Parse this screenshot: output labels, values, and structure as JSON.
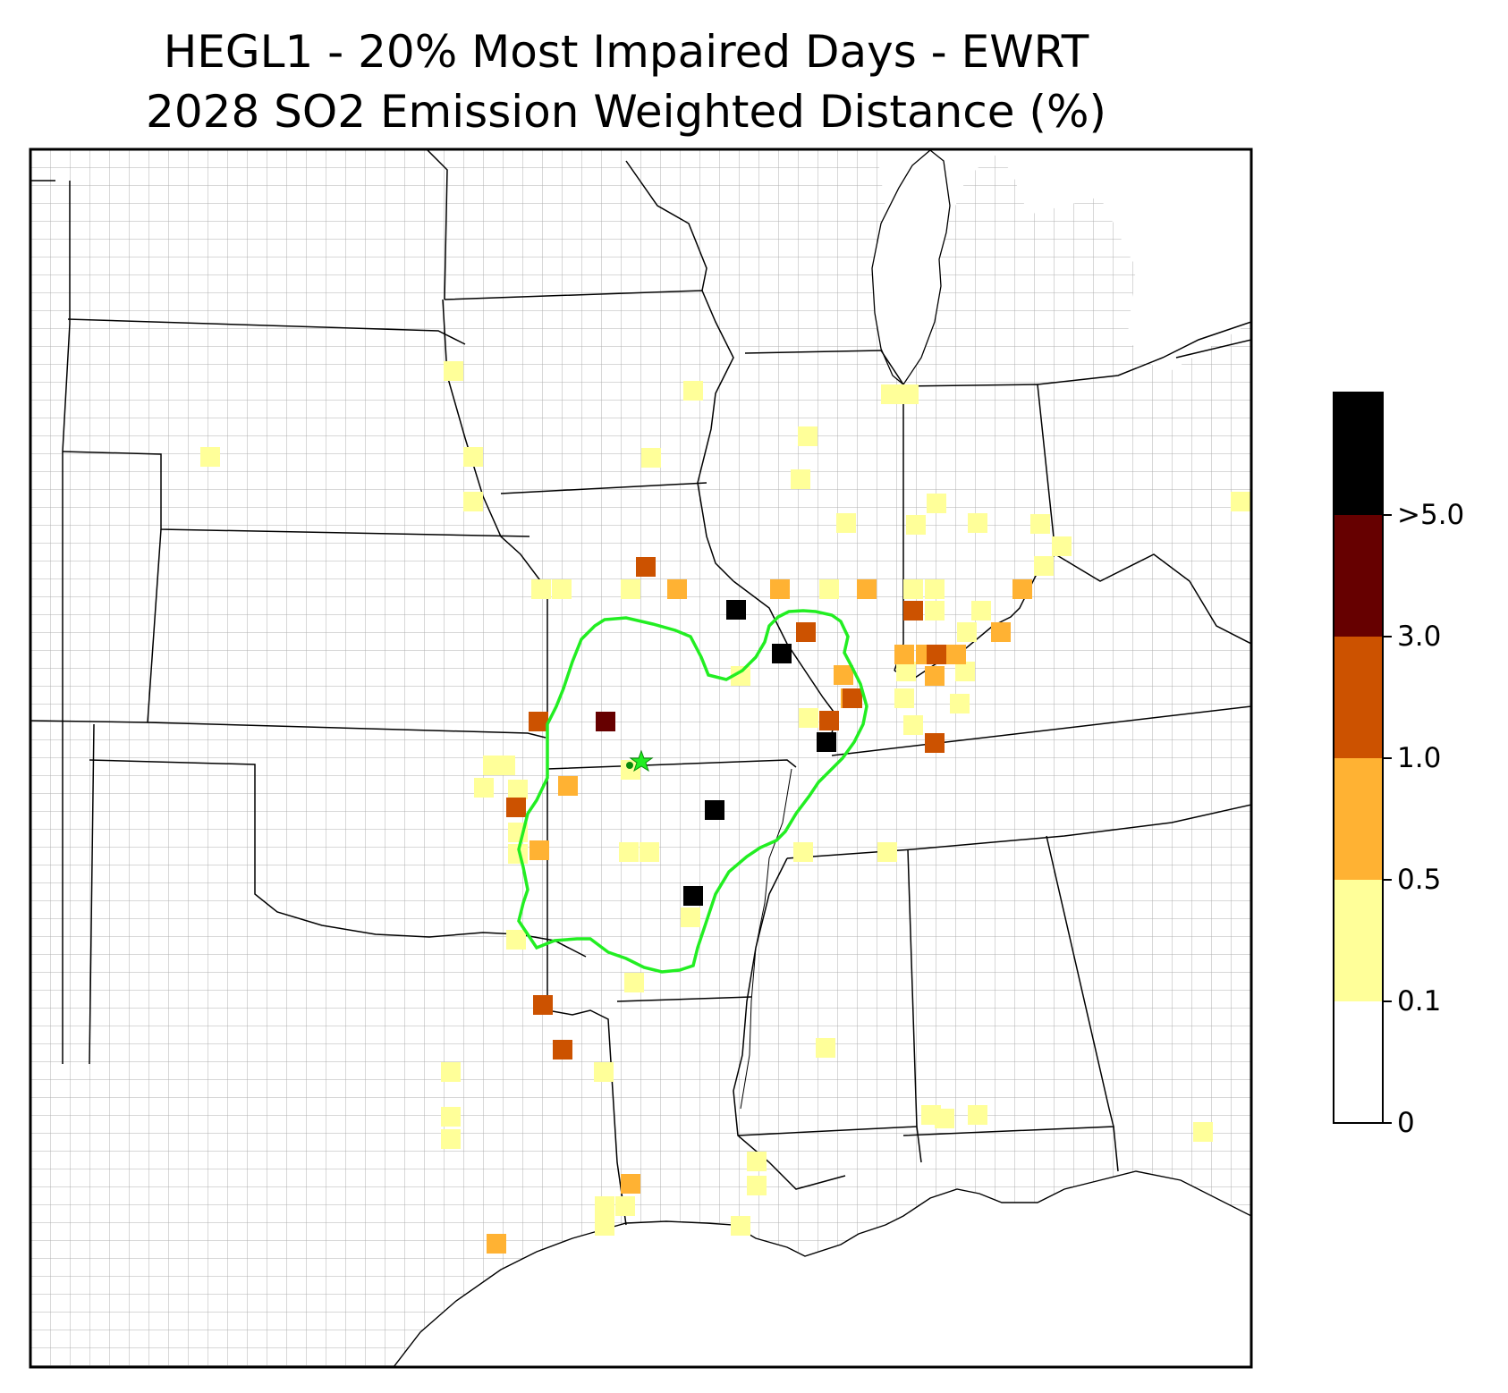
{
  "title": {
    "line1": "HEGL1 - 20% Most Impaired Days - EWRT",
    "line2": "2028 SO2 Emission Weighted Distance (%)"
  },
  "colorbar": {
    "colors": [
      "#ffffff",
      "#ffff99",
      "#ffb233",
      "#cc5200",
      "#660000",
      "#000000"
    ],
    "tick_labels": [
      "0",
      "0.1",
      "0.5",
      "1.0",
      "3.0",
      ">5.0"
    ]
  },
  "colors": {
    "state_border": "#000000",
    "county_border": "#aaaaaa",
    "contour": "#22ee22",
    "site_marker": "#22ee22"
  },
  "layers": {
    "county_grid": "gray county boundaries",
    "state_borders": "black state boundaries",
    "contour": "green back-trajectory residence contour",
    "site": "green star marking the HEGL1 monitor"
  }
}
